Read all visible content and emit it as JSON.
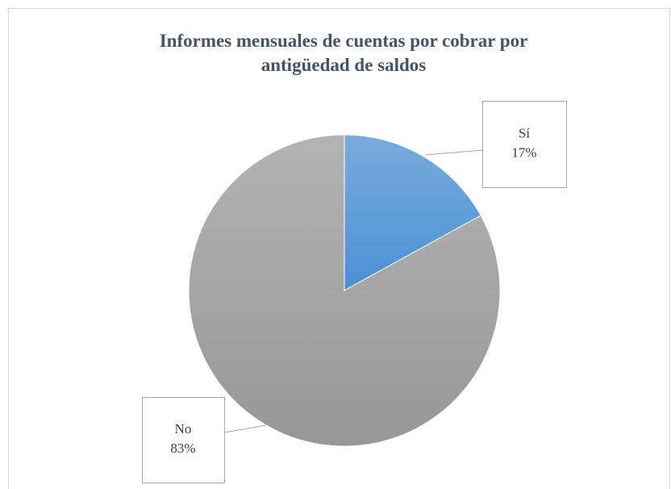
{
  "chart_data": {
    "type": "pie",
    "title": "Informes mensuales de cuentas por cobrar por antigüedad de saldos",
    "categories": [
      "Sí",
      "No"
    ],
    "values": [
      17,
      83
    ],
    "value_labels": [
      "17%",
      "83%"
    ],
    "colors": [
      "#5b9bd5",
      "#a5a5a5"
    ]
  }
}
